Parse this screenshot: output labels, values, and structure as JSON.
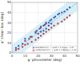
{
  "chart_data": {
    "type": "scatter",
    "xlabel": "φ' phicometer (deg)",
    "ylabel": "φ' shear box (deg)",
    "xlim": [
      0,
      50
    ],
    "ylim": [
      0,
      50
    ],
    "xticks": [
      0,
      10,
      20,
      30,
      40,
      50
    ],
    "yticks": [
      0,
      10,
      20,
      30,
      40,
      50
    ],
    "grid": true,
    "legend": "lower right",
    "band_width": 8,
    "series": [
      {
        "name": "Standard (n=...): φ'sb = 1.02φ'φ - 0.37",
        "color": "#3355bb",
        "marker": "square",
        "x": [
          3,
          5,
          8,
          10,
          13,
          15,
          18,
          19,
          21,
          22,
          24,
          25,
          26,
          28,
          29,
          30,
          32,
          33,
          35,
          36,
          38,
          40,
          42,
          44,
          20,
          22,
          24,
          26,
          28,
          30
        ],
        "values": [
          5,
          7,
          9,
          14,
          14,
          16,
          20,
          22,
          24,
          25,
          27,
          28,
          29,
          30,
          32,
          33,
          35,
          36,
          38,
          39,
          40,
          41,
          43,
          45,
          19,
          21,
          22,
          24,
          27,
          29
        ]
      },
      {
        "name": "Carbonate (n=...): φ'sb = 0.89φ'φ + 1.20",
        "color": "#cc3333",
        "marker": "square",
        "x": [
          3,
          5,
          8,
          10,
          12,
          15,
          18,
          20,
          22,
          24,
          26,
          28,
          30,
          32,
          35,
          38,
          40,
          42,
          44,
          10,
          14,
          18,
          22,
          26
        ],
        "values": [
          3,
          4,
          6,
          8,
          9,
          11,
          13,
          15,
          17,
          19,
          21,
          23,
          25,
          27,
          29,
          31,
          33,
          35,
          37,
          12,
          16,
          21,
          26,
          30
        ]
      }
    ]
  }
}
